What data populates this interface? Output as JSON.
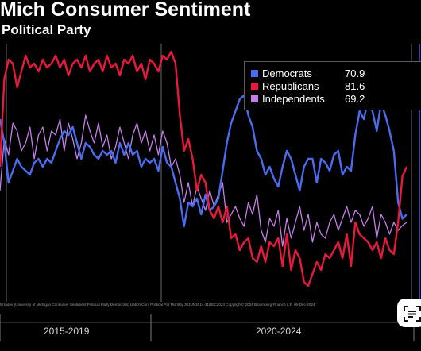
{
  "title": "Mich Consumer Sentiment",
  "subtitle": "Political Party",
  "legend": [
    {
      "name": "Democrats",
      "value": "70.9",
      "color": "#4a6cf0"
    },
    {
      "name": "Republicans",
      "value": "81.6",
      "color": "#e8193c"
    },
    {
      "name": "Independents",
      "value": "69.2",
      "color": "#c47ee8"
    }
  ],
  "footnote": "M Index (University of Michigan Consumer Sentiment Political Party Democrats) UMich Conf Political Par  Monthly 30JUN2014-31DEC2024  Copyright© 2024 Bloomberg Finance L.P.  06-Dec-2024",
  "periods": [
    "2015-2019",
    "2020-2024"
  ],
  "chart_data": {
    "type": "line",
    "title": "Mich Consumer Sentiment",
    "subtitle": "Political Party",
    "x_period_labels": [
      "2015-2019",
      "2020-2024"
    ],
    "ylim": [
      50,
      115
    ],
    "series": [
      {
        "name": "Democrats",
        "color": "#4a6cf0",
        "last_value": 70.9,
        "values": [
          96,
          90,
          80,
          83,
          86,
          84,
          83,
          82,
          85,
          86,
          84,
          86,
          85,
          88,
          91,
          93,
          92,
          94,
          90,
          86,
          90,
          89,
          87,
          86,
          88,
          87,
          88,
          85,
          90,
          87,
          90,
          87,
          88,
          84,
          86,
          85,
          86,
          83,
          89,
          85,
          84,
          80,
          76,
          69,
          75,
          74,
          76,
          72,
          77,
          73,
          74,
          76,
          83,
          90,
          95,
          98,
          101,
          102,
          97,
          94,
          88,
          86,
          82,
          84,
          81,
          79,
          84,
          88,
          86,
          82,
          78,
          84,
          86,
          86,
          80,
          86,
          85,
          83,
          87,
          88,
          82,
          84,
          83,
          92,
          98,
          96,
          101,
          98,
          93,
          100,
          97,
          93,
          88,
          75,
          70.9,
          72
        ]
      },
      {
        "name": "Republicans",
        "color": "#e8193c",
        "last_value": 81.6,
        "values": [
          84,
          106,
          111,
          110,
          104,
          108,
          112,
          109,
          110,
          108,
          111,
          109,
          110,
          112,
          109,
          111,
          107,
          110,
          111,
          109,
          112,
          108,
          110,
          111,
          108,
          112,
          109,
          110,
          107,
          111,
          110,
          112,
          108,
          110,
          106,
          111,
          110,
          108,
          112,
          111,
          113,
          110,
          97,
          88,
          91,
          86,
          78,
          82,
          80,
          73,
          71,
          74,
          70,
          74,
          66,
          67,
          63,
          65,
          66,
          61,
          60,
          64,
          60,
          65,
          64,
          66,
          59,
          67,
          58,
          63,
          61,
          55,
          54,
          57,
          60,
          58,
          62,
          61,
          63,
          65,
          61,
          67,
          59,
          70,
          67,
          66,
          65,
          63,
          65,
          61,
          66,
          63,
          62,
          70,
          81.6,
          84
        ]
      },
      {
        "name": "Independents",
        "color": "#c47ee8",
        "last_value": 69.2,
        "values": [
          78,
          91,
          87,
          95,
          93,
          88,
          90,
          94,
          86,
          92,
          94,
          88,
          93,
          92,
          96,
          88,
          95,
          91,
          86,
          90,
          97,
          93,
          90,
          95,
          89,
          92,
          86,
          89,
          94,
          90,
          86,
          92,
          95,
          90,
          93,
          88,
          92,
          87,
          93,
          90,
          84,
          86,
          82,
          75,
          80,
          74,
          79,
          76,
          73,
          78,
          74,
          77,
          80,
          70,
          72,
          74,
          71,
          69,
          75,
          72,
          77,
          68,
          65,
          71,
          69,
          73,
          64,
          71,
          66,
          70,
          74,
          68,
          72,
          65,
          70,
          67,
          66,
          70,
          72,
          68,
          71,
          74,
          70,
          73,
          72,
          69,
          71,
          74,
          66,
          72,
          70,
          67,
          70,
          68,
          69.2,
          70
        ]
      }
    ]
  }
}
